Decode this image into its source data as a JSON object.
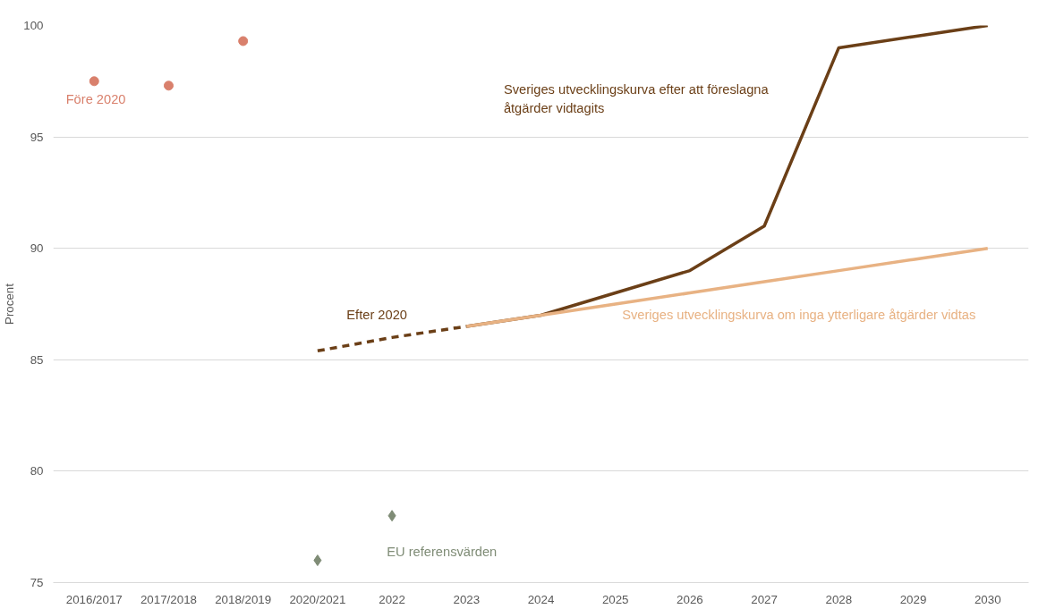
{
  "chart_data": {
    "type": "line",
    "categories": [
      "2016/2017",
      "2017/2018",
      "2018/2019",
      "2020/2021",
      "2022",
      "2023",
      "2024",
      "2025",
      "2026",
      "2027",
      "2028",
      "2029",
      "2030"
    ],
    "ylabel": "Procent",
    "ylim": [
      75,
      100
    ],
    "yticks": [
      75,
      80,
      85,
      90,
      95,
      100
    ],
    "grid": "y",
    "series": [
      {
        "name": "Före 2020",
        "type": "scatter",
        "marker": "circle",
        "color": "#d9806c",
        "values": [
          97.5,
          97.3,
          99.3,
          null,
          null,
          null,
          null,
          null,
          null,
          null,
          null,
          null,
          null
        ]
      },
      {
        "name": "Efter 2020",
        "line_style": "dashed",
        "color": "#6b3f17",
        "values": [
          null,
          null,
          null,
          85.4,
          86.0,
          86.5,
          null,
          null,
          null,
          null,
          null,
          null,
          null
        ]
      },
      {
        "name": "Sveriges utvecklingskurva efter att föreslagna åtgärder vidtagits",
        "line_style": "solid",
        "color": "#6b3f17",
        "values": [
          null,
          null,
          null,
          null,
          null,
          86.5,
          87.0,
          88.0,
          89.0,
          91.0,
          99.0,
          99.5,
          100.0
        ]
      },
      {
        "name": "Sveriges utvecklingskurva om inga ytterligare åtgärder vidtas",
        "line_style": "solid",
        "color": "#e8b283",
        "values": [
          null,
          null,
          null,
          null,
          null,
          86.5,
          87.0,
          87.5,
          88.0,
          88.5,
          89.0,
          89.5,
          90.0
        ]
      },
      {
        "name": "EU referensvärden",
        "type": "scatter",
        "marker": "diamond",
        "color": "#7f8c76",
        "values": [
          null,
          null,
          null,
          76,
          78,
          null,
          null,
          null,
          null,
          null,
          null,
          null,
          null
        ]
      }
    ]
  }
}
